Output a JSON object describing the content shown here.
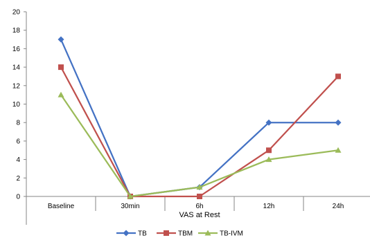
{
  "chart_data": {
    "type": "line",
    "title": "",
    "xlabel": "VAS at Rest",
    "ylabel": "",
    "categories": [
      "Baseline",
      "30min",
      "6h",
      "12h",
      "24h"
    ],
    "ylim": [
      0,
      20
    ],
    "yticks": [
      0,
      2,
      4,
      6,
      8,
      10,
      12,
      14,
      16,
      18,
      20
    ],
    "grid": false,
    "legend": "bottom",
    "series": [
      {
        "name": "TB",
        "values": [
          17,
          0,
          1,
          8,
          8
        ],
        "color": "#4472C4",
        "marker": "diamond"
      },
      {
        "name": "TBM",
        "values": [
          14,
          0,
          0,
          5,
          13
        ],
        "color": "#C0504D",
        "marker": "square"
      },
      {
        "name": "TB-IVM",
        "values": [
          11,
          0,
          1,
          4,
          5
        ],
        "color": "#9BBB59",
        "marker": "triangle"
      }
    ]
  }
}
